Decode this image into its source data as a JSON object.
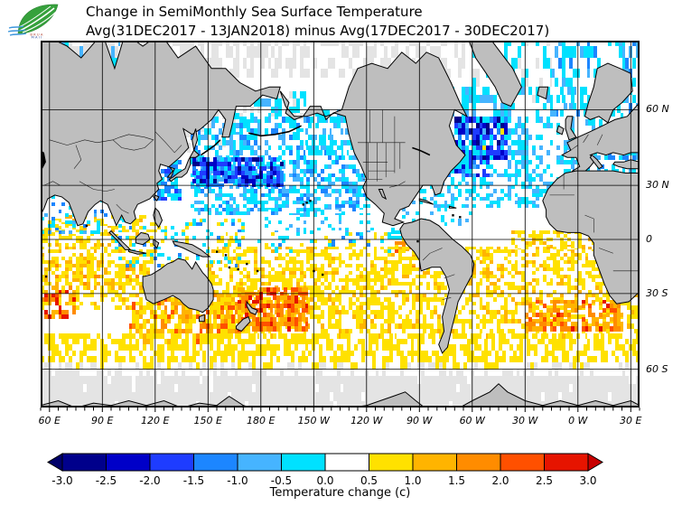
{
  "header": {
    "title_line1": "Change in SemiMonthly Sea Surface Temperature",
    "title_line2": "Avg(31DEC2017 - 13JAN2018) minus Avg(17DEC2017 - 30DEC2017)",
    "logo_tag_line1": "BRUA",
    "logo_tag_line2": "MAII"
  },
  "map": {
    "land_color": "#BEBEBE",
    "ocean_color": "#FFFFFF",
    "nodata_color": "#E4E4E4",
    "coast_color": "#000000",
    "grid_color": "#000000",
    "x_axis": {
      "gridline_lons": [
        60,
        90,
        120,
        150,
        180,
        210,
        240,
        270,
        300,
        330,
        360,
        390
      ],
      "tick_labels": [
        "60 E",
        "90 E",
        "120 E",
        "150 E",
        "180 E",
        "150 W",
        "120 W",
        "90 W",
        "60 W",
        "30 W",
        "0 W",
        "30 E"
      ]
    },
    "y_axis": {
      "gridline_lats": [
        60,
        30,
        0,
        -30,
        -60
      ],
      "tick_labels": [
        "60 N",
        "30 N",
        "0",
        "30 S",
        "60 S"
      ]
    }
  },
  "colorbar": {
    "caption": "Temperature change  (c)",
    "tick_labels": [
      "-3.0",
      "-2.5",
      "-2.0",
      "-1.5",
      "-1.0",
      "-0.5",
      "0.0",
      "0.5",
      "1.0",
      "1.5",
      "2.0",
      "2.5",
      "3.0"
    ],
    "colors": [
      "#000069",
      "#00008B",
      "#0000C8",
      "#1E3CFF",
      "#1C86FF",
      "#46B4FF",
      "#00E1FF",
      "#FFFFFF",
      "#FFE100",
      "#FFB400",
      "#FF8C00",
      "#FF5000",
      "#E61400",
      "#C80000"
    ]
  },
  "chart_data": {
    "type": "heatmap",
    "title": "Change in SemiMonthly Sea Surface Temperature",
    "subtitle": "Avg(31DEC2017 - 13JAN2018) minus Avg(17DEC2017 - 30DEC2017)",
    "variable": "Temperature change (c)",
    "value_levels": [
      -3.0,
      -2.5,
      -2.0,
      -1.5,
      -1.0,
      -0.5,
      0.0,
      0.5,
      1.0,
      1.5,
      2.0,
      2.5,
      3.0
    ],
    "lon_range_deg_east": [
      55,
      395
    ],
    "lat_range": [
      -71,
      75
    ],
    "projection": "mercator, pacific-centered world map",
    "grid": "30 deg solid black gridlines",
    "legend_position": "bottom",
    "regions": [
      {
        "name": "arctic-barents-kara",
        "lon": [
          55,
          100
        ],
        "lat": [
          66,
          75.5
        ],
        "colors": [
          -1,
          7,
          6,
          5
        ],
        "weights": [
          3,
          1,
          2,
          1
        ],
        "density": 0.9
      },
      {
        "name": "arctic-siberian-nodata",
        "lon": [
          100,
          200
        ],
        "lat": [
          68,
          75.5
        ],
        "colors": [
          -1,
          7
        ],
        "weights": [
          3,
          1
        ],
        "density": 0.8
      },
      {
        "name": "arctic-american-nodata",
        "lon": [
          200,
          300
        ],
        "lat": [
          68,
          75.5
        ],
        "colors": [
          -1,
          7
        ],
        "weights": [
          2,
          1
        ],
        "density": 0.7
      },
      {
        "name": "greenland-sea-mixed",
        "lon": [
          300,
          345
        ],
        "lat": [
          60,
          75
        ],
        "colors": [
          6,
          7,
          -1
        ],
        "weights": [
          2,
          2,
          1
        ],
        "density": 0.5
      },
      {
        "name": "norwegian-sea-cooling",
        "lon": [
          345,
          395
        ],
        "lat": [
          58,
          75
        ],
        "colors": [
          6,
          5,
          7,
          4
        ],
        "weights": [
          3,
          1,
          2,
          1
        ],
        "density": 0.65
      },
      {
        "name": "sea-of-okhotsk-nodata",
        "lon": [
          136,
          160
        ],
        "lat": [
          45,
          62
        ],
        "colors": [
          -1,
          7
        ],
        "weights": [
          4,
          1
        ],
        "density": 0.85
      },
      {
        "name": "hudson-bay-nodata",
        "lon": [
          262,
          284
        ],
        "lat": [
          51,
          65
        ],
        "colors": [
          -1,
          7,
          6
        ],
        "weights": [
          4,
          2,
          1
        ],
        "density": 0.85
      },
      {
        "name": "bering-sea-cooling",
        "lon": [
          162,
          205
        ],
        "lat": [
          51,
          65
        ],
        "colors": [
          6,
          7,
          5,
          -1
        ],
        "weights": [
          3,
          2,
          1,
          1
        ],
        "density": 0.6
      },
      {
        "name": "north-pacific-cooling",
        "lon": [
          140,
          242
        ],
        "lat": [
          14,
          57
        ],
        "colors": [
          6,
          5,
          7,
          4
        ],
        "weights": [
          3,
          2,
          3,
          1
        ],
        "density": 0.8
      },
      {
        "name": "gulf-of-alaska-cooling",
        "lon": [
          205,
          237
        ],
        "lat": [
          44,
          60
        ],
        "colors": [
          6,
          5,
          7
        ],
        "weights": [
          3,
          1,
          2
        ],
        "density": 0.7
      },
      {
        "name": "california-coast-cool-speckle",
        "lon": [
          235,
          258
        ],
        "lat": [
          20,
          45
        ],
        "colors": [
          6,
          7,
          5
        ],
        "weights": [
          2,
          3,
          1
        ],
        "density": 0.5
      },
      {
        "name": "ne-trades-speckle",
        "lon": [
          182,
          262
        ],
        "lat": [
          3,
          17
        ],
        "colors": [
          6,
          7,
          5
        ],
        "weights": [
          2,
          5,
          1
        ],
        "density": 0.5
      },
      {
        "name": "west-pacific-equatorial-mixed",
        "lon": [
          160,
          190
        ],
        "lat": [
          -8,
          5
        ],
        "colors": [
          6,
          7,
          8
        ],
        "weights": [
          1,
          3,
          1
        ],
        "density": 0.4
      },
      {
        "name": "equatorial-pacific-streaks",
        "lon": [
          186,
          266
        ],
        "lat": [
          -12,
          3
        ],
        "colors": [
          6,
          4,
          8,
          7
        ],
        "weights": [
          2,
          1,
          2,
          3
        ],
        "density": 0.45
      },
      {
        "name": "kuroshio-extension-strong-cooling",
        "lon": [
          141,
          192
        ],
        "lat": [
          29,
          43
        ],
        "colors": [
          3,
          2,
          4,
          6,
          1
        ],
        "weights": [
          3,
          2,
          2,
          2,
          1
        ],
        "density": 0.8
      },
      {
        "name": "east-china-sea-cooling",
        "lon": [
          117,
          135
        ],
        "lat": [
          22,
          41
        ],
        "colors": [
          4,
          6,
          3
        ],
        "weights": [
          2,
          2,
          1
        ],
        "density": 0.7
      },
      {
        "name": "east-pacific-warm-blob",
        "lon": [
          256,
          288
        ],
        "lat": [
          -17,
          -1
        ],
        "colors": [
          9,
          10,
          8,
          11
        ],
        "weights": [
          2,
          3,
          2,
          1
        ],
        "density": 0.8
      },
      {
        "name": "south-pacific-warming",
        "lon": [
          150,
          292
        ],
        "lat": [
          -50,
          -5
        ],
        "colors": [
          8,
          7,
          9
        ],
        "weights": [
          5,
          3,
          1
        ],
        "density": 0.8
      },
      {
        "name": "south-of-australia-warming",
        "lon": [
          105,
          168
        ],
        "lat": [
          -52,
          -30
        ],
        "colors": [
          9,
          8,
          10,
          11
        ],
        "weights": [
          2,
          3,
          1,
          0.5
        ],
        "density": 0.75
      },
      {
        "name": "new-zealand-strong-warming",
        "lon": [
          167,
          206
        ],
        "lat": [
          -47,
          -27
        ],
        "colors": [
          10,
          9,
          11,
          12
        ],
        "weights": [
          3,
          2,
          2,
          1
        ],
        "density": 0.8
      },
      {
        "name": "indian-ocean-warming",
        "lon": [
          55,
          120
        ],
        "lat": [
          -38,
          14
        ],
        "colors": [
          8,
          7,
          9
        ],
        "weights": [
          4,
          3,
          1
        ],
        "density": 0.7
      },
      {
        "name": "indian-20s-orange-band",
        "lon": [
          57,
          112
        ],
        "lat": [
          -28,
          -13
        ],
        "colors": [
          9,
          10,
          8
        ],
        "weights": [
          2,
          1,
          3
        ],
        "density": 0.55
      },
      {
        "name": "sw-indian-red-spots",
        "lon": [
          55,
          75
        ],
        "lat": [
          -42,
          -29
        ],
        "colors": [
          10,
          11,
          12,
          9
        ],
        "weights": [
          2,
          1,
          1,
          2
        ],
        "density": 0.5
      },
      {
        "name": "maritime-continent-mixed",
        "lon": [
          95,
          170
        ],
        "lat": [
          -16,
          12
        ],
        "colors": [
          6,
          8,
          7,
          4
        ],
        "weights": [
          2,
          2,
          3,
          1
        ],
        "density": 0.4
      },
      {
        "name": "north-indian-cool-speckle",
        "lon": [
          55,
          100
        ],
        "lat": [
          3,
          25
        ],
        "colors": [
          6,
          7,
          5,
          4
        ],
        "weights": [
          2,
          3,
          1,
          0.5
        ],
        "density": 0.35
      },
      {
        "name": "north-atlantic-cooling",
        "lon": [
          276,
          358
        ],
        "lat": [
          18,
          65
        ],
        "colors": [
          6,
          5,
          7
        ],
        "weights": [
          3,
          2,
          3
        ],
        "density": 0.7
      },
      {
        "name": "gulf-stream-cooling",
        "lon": [
          282,
          310
        ],
        "lat": [
          34,
          45
        ],
        "colors": [
          3,
          2,
          4,
          6
        ],
        "weights": [
          2,
          1,
          1,
          2
        ],
        "density": 0.7
      },
      {
        "name": "subpolar-atlantic-strong-cooling",
        "lon": [
          290,
          320
        ],
        "lat": [
          42,
          58
        ],
        "colors": [
          2,
          3,
          1,
          6,
          4
        ],
        "weights": [
          2,
          2,
          1,
          1,
          1
        ],
        "density": 0.8
      },
      {
        "name": "subpolar-atlantic-warm-specks",
        "lon": [
          294,
          320
        ],
        "lat": [
          44,
          54
        ],
        "colors": [
          8,
          9
        ],
        "weights": [
          2,
          1
        ],
        "density": 0.08
      },
      {
        "name": "caribbean-gulf-speckle",
        "lon": [
          258,
          300
        ],
        "lat": [
          8,
          28
        ],
        "colors": [
          6,
          7,
          5
        ],
        "weights": [
          2,
          4,
          1
        ],
        "density": 0.4
      },
      {
        "name": "equatorial-atlantic-warming",
        "lon": [
          322,
          380
        ],
        "lat": [
          -7,
          4
        ],
        "colors": [
          8,
          9,
          7
        ],
        "weights": [
          3,
          1,
          2
        ],
        "density": 0.65
      },
      {
        "name": "south-atlantic-warming",
        "lon": [
          288,
          395
        ],
        "lat": [
          -50,
          -5
        ],
        "colors": [
          8,
          7,
          9
        ],
        "weights": [
          4,
          3,
          1
        ],
        "density": 0.75
      },
      {
        "name": "south-atlantic-orange-patches",
        "lon": [
          330,
          385
        ],
        "lat": [
          -47,
          -33
        ],
        "colors": [
          9,
          10,
          11,
          12
        ],
        "weights": [
          3,
          2,
          1,
          0.4
        ],
        "density": 0.6
      },
      {
        "name": "southern-ocean-yellow-band",
        "lon": [
          55,
          395
        ],
        "lat": [
          -60,
          -48
        ],
        "colors": [
          8,
          7
        ],
        "weights": [
          3,
          1
        ],
        "density": 0.75
      },
      {
        "name": "subantarctic-white-band",
        "lon": [
          55,
          395
        ],
        "lat": [
          -64,
          -58
        ],
        "colors": [
          7,
          -1
        ],
        "weights": [
          3,
          2
        ],
        "density": 0.7
      },
      {
        "name": "antarctic-nodata-band",
        "lon": [
          55,
          395
        ],
        "lat": [
          -72,
          -62
        ],
        "colors": [
          -1
        ],
        "weights": [
          1
        ],
        "density": 0.95
      },
      {
        "name": "mediterranean-cooling",
        "lon": [
          355,
          395
        ],
        "lat": [
          30,
          45
        ],
        "colors": [
          6,
          4,
          5
        ],
        "weights": [
          2,
          1,
          1
        ],
        "density": 0.45
      },
      {
        "name": "baltic-north-sea-cooling",
        "lon": [
          364,
          386
        ],
        "lat": [
          53,
          62
        ],
        "colors": [
          6,
          5
        ],
        "weights": [
          2,
          1
        ],
        "density": 0.5
      }
    ]
  }
}
